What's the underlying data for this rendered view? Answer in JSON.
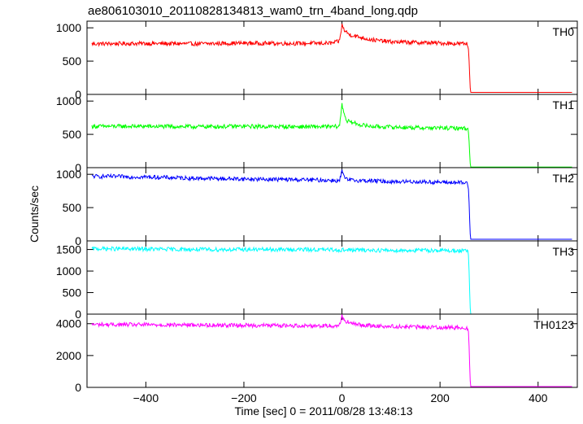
{
  "chart_data": {
    "type": "line",
    "title": "ae806103010_20110828134813_wam0_trn_4band_long.qdp",
    "xlabel": "Time [sec] 0 = 2011/08/28 13:48:13",
    "ylabel": "Counts/sec",
    "xlim": [
      -520,
      480
    ],
    "x_ticks": [
      -400,
      -200,
      0,
      200,
      400
    ],
    "x_tick_labels": [
      "−400",
      "−200",
      "0",
      "200",
      "400"
    ],
    "grid": false,
    "legend": "none",
    "series": [
      {
        "name": "TH0",
        "color": "#ff0000",
        "ylim": [
          0,
          1100
        ],
        "y_ticks": [
          0,
          500,
          1000
        ],
        "y_tick_labels": [
          "0",
          "500",
          "1000"
        ],
        "x": [
          -510,
          -400,
          -300,
          -200,
          -100,
          -20,
          -5,
          0,
          5,
          15,
          30,
          60,
          100,
          150,
          200,
          255,
          258,
          262,
          470
        ],
        "y": [
          760,
          765,
          760,
          770,
          765,
          770,
          800,
          1040,
          960,
          900,
          870,
          820,
          790,
          780,
          770,
          760,
          700,
          30,
          30
        ]
      },
      {
        "name": "TH1",
        "color": "#00ff00",
        "ylim": [
          0,
          1100
        ],
        "y_ticks": [
          0,
          500,
          1000
        ],
        "y_tick_labels": [
          "0",
          "500",
          "1000"
        ],
        "x": [
          -510,
          -400,
          -300,
          -200,
          -100,
          -20,
          -5,
          0,
          5,
          10,
          20,
          40,
          60,
          100,
          150,
          200,
          255,
          258,
          262,
          470
        ],
        "y": [
          620,
          620,
          615,
          620,
          615,
          615,
          620,
          950,
          800,
          700,
          680,
          640,
          620,
          610,
          600,
          595,
          590,
          550,
          10,
          10
        ]
      },
      {
        "name": "TH2",
        "color": "#0000ff",
        "ylim": [
          0,
          1100
        ],
        "y_ticks": [
          0,
          500,
          1000
        ],
        "y_tick_labels": [
          "0",
          "500",
          "1000"
        ],
        "x": [
          -510,
          -400,
          -300,
          -200,
          -100,
          -20,
          -5,
          0,
          5,
          10,
          20,
          50,
          100,
          150,
          200,
          255,
          258,
          262,
          470
        ],
        "y": [
          970,
          960,
          940,
          930,
          920,
          910,
          900,
          1050,
          950,
          920,
          910,
          905,
          890,
          890,
          880,
          870,
          800,
          25,
          25
        ]
      },
      {
        "name": "TH3",
        "color": "#00ffff",
        "ylim": [
          0,
          1700
        ],
        "y_ticks": [
          0,
          500,
          1000,
          1500
        ],
        "y_tick_labels": [
          "0",
          "500",
          "1000",
          "1500"
        ],
        "x": [
          -510,
          -400,
          -300,
          -200,
          -100,
          0,
          100,
          200,
          255,
          258,
          262,
          470
        ],
        "y": [
          1520,
          1510,
          1500,
          1500,
          1500,
          1490,
          1480,
          1480,
          1470,
          1400,
          0,
          0
        ]
      },
      {
        "name": "TH0123",
        "color": "#ff00ff",
        "ylim": [
          0,
          4600
        ],
        "y_ticks": [
          0,
          2000,
          4000
        ],
        "y_tick_labels": [
          "0",
          "2000",
          "4000"
        ],
        "x": [
          -510,
          -400,
          -300,
          -200,
          -100,
          -20,
          -5,
          0,
          5,
          15,
          30,
          60,
          100,
          150,
          200,
          255,
          258,
          262,
          470
        ],
        "y": [
          3950,
          3930,
          3920,
          3900,
          3880,
          3870,
          3900,
          4500,
          4200,
          4050,
          3950,
          3870,
          3830,
          3800,
          3770,
          3750,
          3600,
          50,
          50
        ]
      }
    ]
  }
}
